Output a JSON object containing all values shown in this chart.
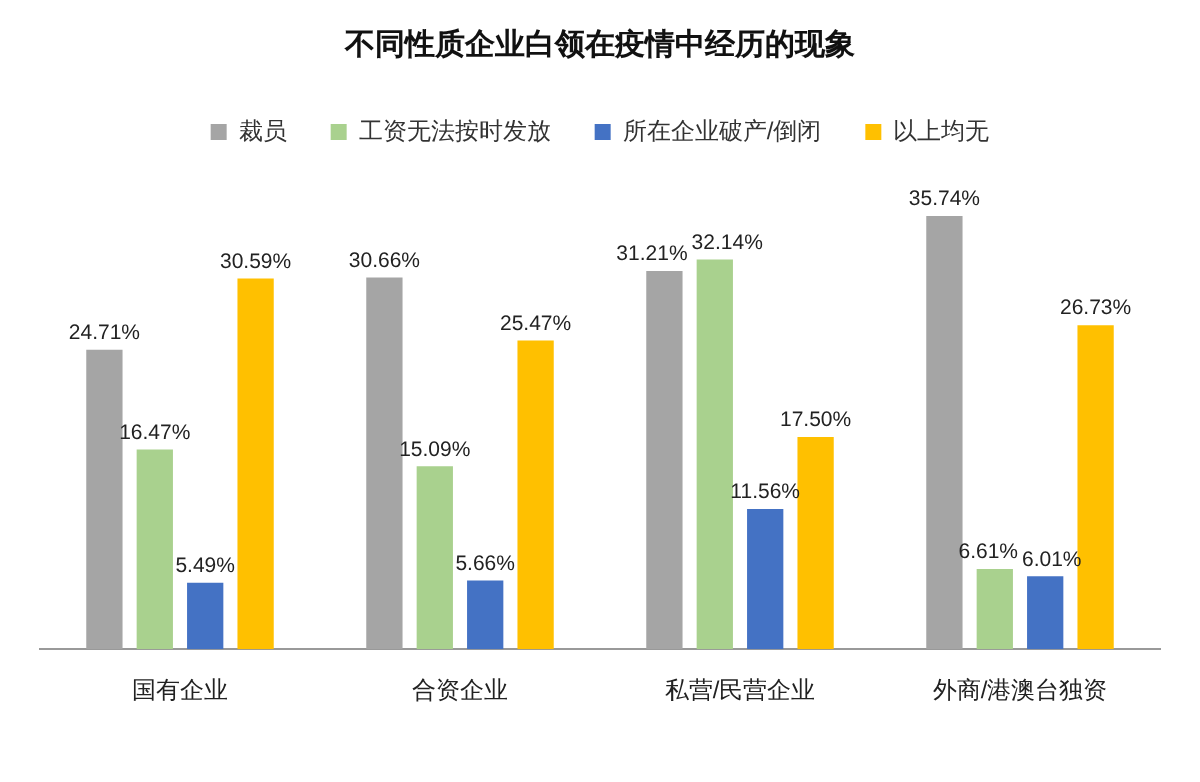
{
  "chart_data": {
    "type": "bar",
    "title": "不同性质企业白领在疫情中经历的现象",
    "categories": [
      "国有企业",
      "合资企业",
      "私营/民营企业",
      "外商/港澳台独资"
    ],
    "legend": "top",
    "grid": false,
    "series": [
      {
        "name": "裁员",
        "color": "#a5a5a5",
        "values": [
          24.71,
          30.66,
          31.21,
          35.74
        ],
        "value_labels": [
          "24.71%",
          "30.66%",
          "31.21%",
          "35.74%"
        ]
      },
      {
        "name": "工资无法按时发放",
        "color": "#a9d18e",
        "values": [
          16.47,
          15.09,
          32.14,
          6.61
        ],
        "value_labels": [
          "16.47%",
          "15.09%",
          "32.14%",
          "6.61%"
        ]
      },
      {
        "name": "所在企业破产/倒闭",
        "color": "#4472c4",
        "values": [
          5.49,
          5.66,
          11.56,
          6.01
        ],
        "value_labels": [
          "5.49%",
          "5.66%",
          "11.56%",
          "6.01%"
        ]
      },
      {
        "name": "以上均无",
        "color": "#ffc000",
        "values": [
          30.59,
          25.47,
          17.5,
          26.73
        ],
        "value_labels": [
          "30.59%",
          "25.47%",
          "17.50%",
          "26.73%"
        ]
      }
    ]
  }
}
